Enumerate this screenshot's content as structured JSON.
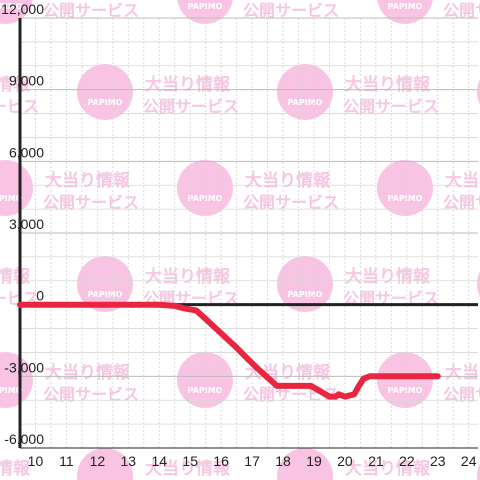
{
  "watermark": {
    "line1": "大当り情報",
    "line2": "公開サービス",
    "logo_text": "PAPIMO",
    "color": "#f9c4e3"
  },
  "colors": {
    "series": "#e8263f",
    "axis": "#222222",
    "grid_major": "#bbbbbb",
    "grid_minor": "#d6d6d6"
  },
  "chart_data": {
    "type": "line",
    "title": "",
    "xlabel": "",
    "ylabel": "",
    "xlim": [
      9.5,
      24.3
    ],
    "ylim": [
      -6000,
      12000
    ],
    "x_ticks": [
      10,
      11,
      12,
      13,
      14,
      15,
      16,
      17,
      18,
      19,
      20,
      21,
      22,
      23,
      24
    ],
    "y_ticks": [
      -6000,
      -3000,
      0,
      3000,
      6000,
      9000,
      12000
    ],
    "y_tick_labels": [
      "-6,000",
      "-3,000",
      "0",
      "3,000",
      "6,000",
      "9,000",
      "12,000"
    ],
    "grid": true,
    "series": [
      {
        "x": [
          9.5,
          14.0,
          14.5,
          14.8,
          15.2,
          15.5,
          16.0,
          16.5,
          16.8,
          17.2,
          17.8,
          18.9,
          19.5,
          19.7,
          19.8,
          20.0,
          20.3,
          20.45,
          20.6,
          20.8,
          21.0,
          21.5,
          22.0,
          23.0
        ],
        "y": [
          0,
          0,
          -50,
          -150,
          -250,
          -600,
          -1200,
          -1800,
          -2200,
          -2700,
          -3400,
          -3400,
          -3850,
          -3850,
          -3750,
          -3850,
          -3750,
          -3400,
          -3100,
          -3000,
          -3000,
          -3000,
          -3000,
          -3000
        ]
      }
    ]
  }
}
